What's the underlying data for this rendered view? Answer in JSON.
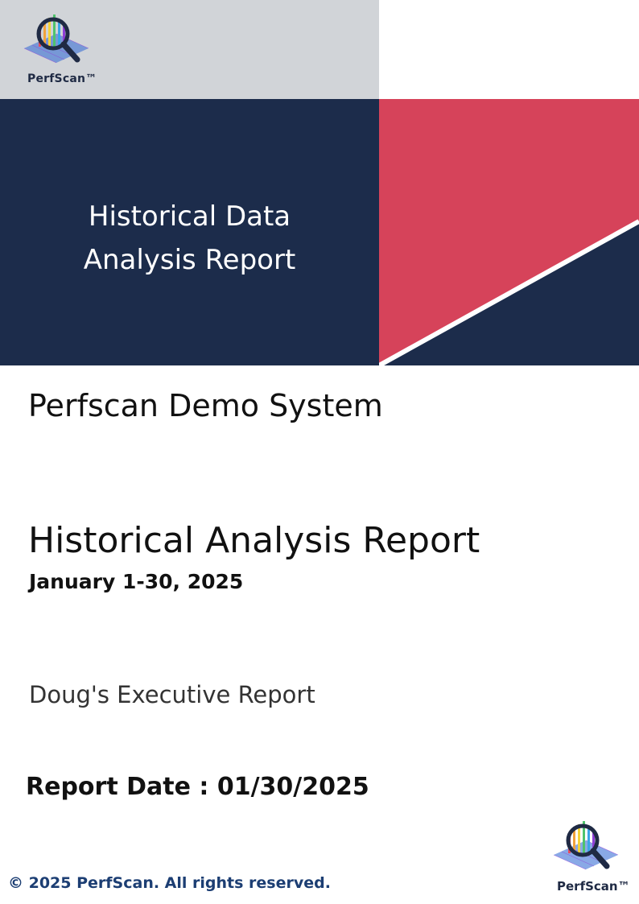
{
  "brand": {
    "logo_text": "PerfScan™"
  },
  "cover": {
    "title_line1": "Historical Data",
    "title_line2": "Analysis Report"
  },
  "report": {
    "system_name": "Perfscan Demo System",
    "title": "Historical Analysis Report",
    "date_range": "January 1-30, 2025",
    "audience": "Doug's Executive Report",
    "report_date": "Report Date : 01/30/2025"
  },
  "footer": {
    "copyright": "© 2025 PerfScan. All rights reserved."
  },
  "colors": {
    "navy": "#1c2c4b",
    "crimson": "#d6435a",
    "panel_gray": "#d1d4d8"
  }
}
